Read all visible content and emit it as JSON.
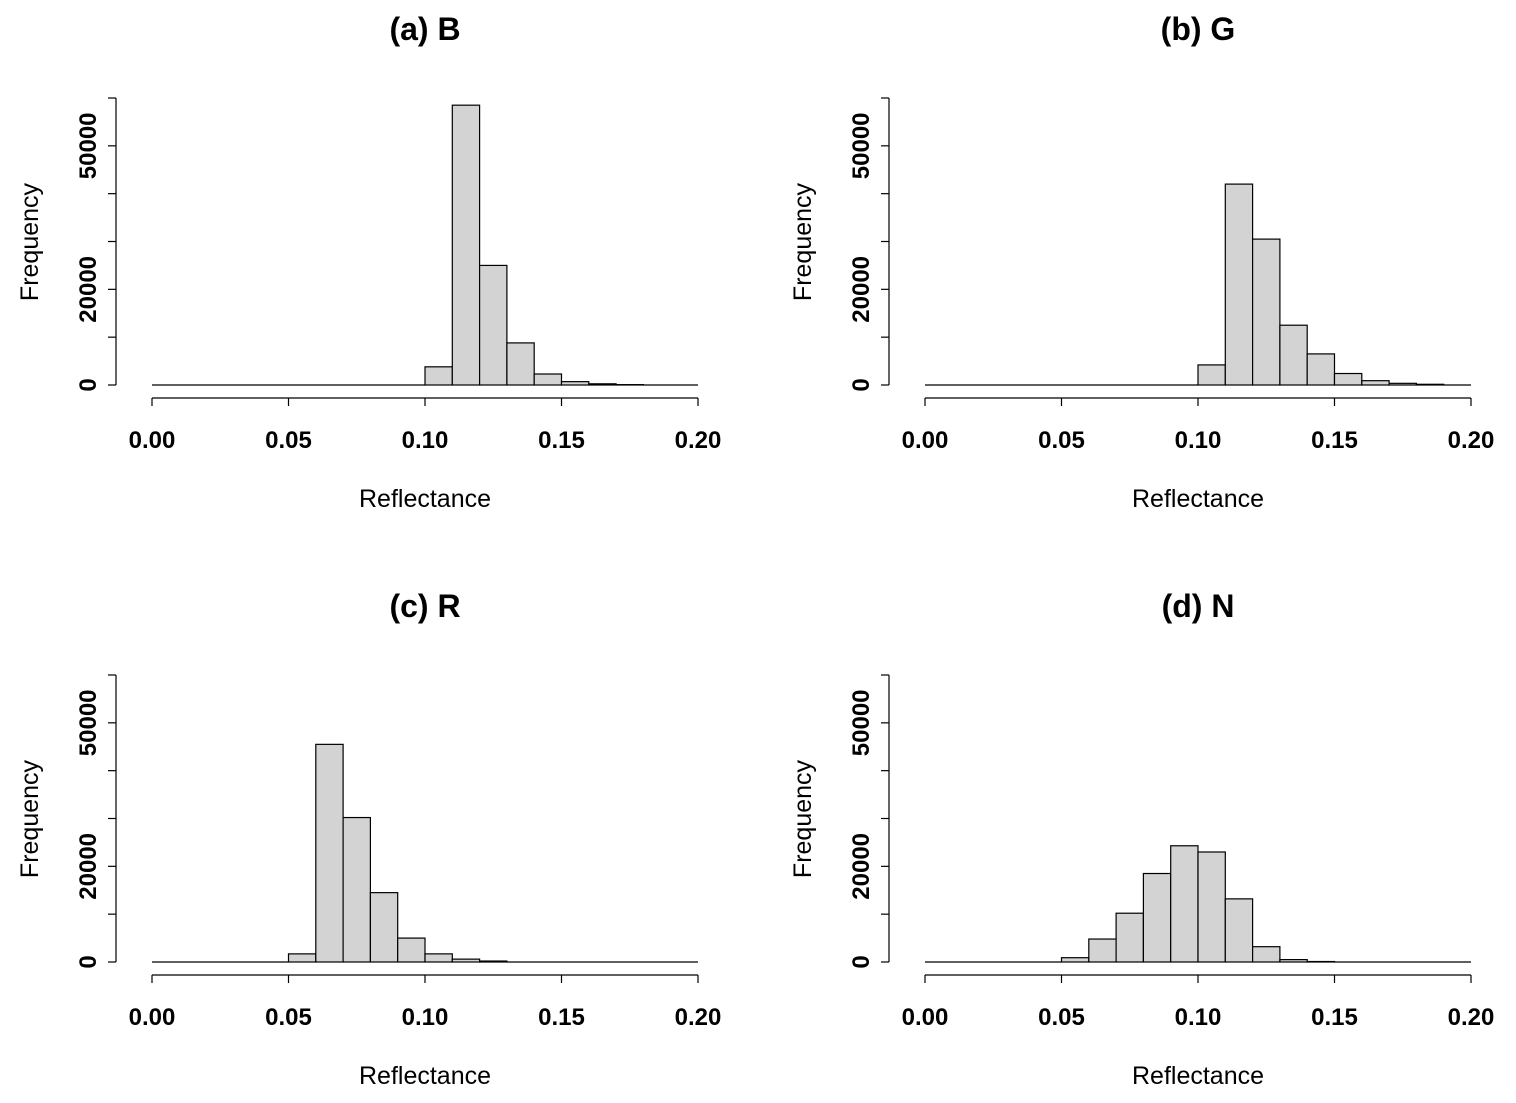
{
  "figure": {
    "bar_fill": "#d3d3d3",
    "bar_stroke": "#000000"
  },
  "chart_data": [
    {
      "type": "bar",
      "title": "(a) B",
      "xlabel": "Reflectance",
      "ylabel": "Frequency",
      "xlim": [
        0,
        0.2
      ],
      "ylim": [
        0,
        60000
      ],
      "x_ticks": [
        "0.00",
        "0.05",
        "0.10",
        "0.15",
        "0.20"
      ],
      "x_tick_values": [
        0,
        0.05,
        0.1,
        0.15,
        0.2
      ],
      "y_ticks": [
        "0",
        "20000",
        "50000"
      ],
      "y_tick_values": [
        0,
        20000,
        50000
      ],
      "y_minor_ticks": [
        10000,
        30000,
        40000,
        60000
      ],
      "bins": [
        {
          "x0": 0.0,
          "x1": 0.1,
          "count": 0
        },
        {
          "x0": 0.1,
          "x1": 0.11,
          "count": 3800
        },
        {
          "x0": 0.11,
          "x1": 0.12,
          "count": 58500
        },
        {
          "x0": 0.12,
          "x1": 0.13,
          "count": 25000
        },
        {
          "x0": 0.13,
          "x1": 0.14,
          "count": 8800
        },
        {
          "x0": 0.14,
          "x1": 0.15,
          "count": 2300
        },
        {
          "x0": 0.15,
          "x1": 0.16,
          "count": 700
        },
        {
          "x0": 0.16,
          "x1": 0.17,
          "count": 250
        },
        {
          "x0": 0.17,
          "x1": 0.18,
          "count": 80
        },
        {
          "x0": 0.18,
          "x1": 0.2,
          "count": 0
        }
      ]
    },
    {
      "type": "bar",
      "title": "(b) G",
      "xlabel": "Reflectance",
      "ylabel": "Frequency",
      "xlim": [
        0,
        0.2
      ],
      "ylim": [
        0,
        60000
      ],
      "x_ticks": [
        "0.00",
        "0.05",
        "0.10",
        "0.15",
        "0.20"
      ],
      "x_tick_values": [
        0,
        0.05,
        0.1,
        0.15,
        0.2
      ],
      "y_ticks": [
        "0",
        "20000",
        "50000"
      ],
      "y_tick_values": [
        0,
        20000,
        50000
      ],
      "y_minor_ticks": [
        10000,
        30000,
        40000,
        60000
      ],
      "bins": [
        {
          "x0": 0.0,
          "x1": 0.1,
          "count": 0
        },
        {
          "x0": 0.1,
          "x1": 0.11,
          "count": 4200
        },
        {
          "x0": 0.11,
          "x1": 0.12,
          "count": 42000
        },
        {
          "x0": 0.12,
          "x1": 0.13,
          "count": 30500
        },
        {
          "x0": 0.13,
          "x1": 0.14,
          "count": 12500
        },
        {
          "x0": 0.14,
          "x1": 0.15,
          "count": 6500
        },
        {
          "x0": 0.15,
          "x1": 0.16,
          "count": 2400
        },
        {
          "x0": 0.16,
          "x1": 0.17,
          "count": 900
        },
        {
          "x0": 0.17,
          "x1": 0.18,
          "count": 350
        },
        {
          "x0": 0.18,
          "x1": 0.19,
          "count": 150
        },
        {
          "x0": 0.19,
          "x1": 0.2,
          "count": 0
        }
      ]
    },
    {
      "type": "bar",
      "title": "(c) R",
      "xlabel": "Reflectance",
      "ylabel": "Frequency",
      "xlim": [
        0,
        0.2
      ],
      "ylim": [
        0,
        60000
      ],
      "x_ticks": [
        "0.00",
        "0.05",
        "0.10",
        "0.15",
        "0.20"
      ],
      "x_tick_values": [
        0,
        0.05,
        0.1,
        0.15,
        0.2
      ],
      "y_ticks": [
        "0",
        "20000",
        "50000"
      ],
      "y_tick_values": [
        0,
        20000,
        50000
      ],
      "y_minor_ticks": [
        10000,
        30000,
        40000,
        60000
      ],
      "bins": [
        {
          "x0": 0.0,
          "x1": 0.05,
          "count": 0
        },
        {
          "x0": 0.05,
          "x1": 0.06,
          "count": 1700
        },
        {
          "x0": 0.06,
          "x1": 0.07,
          "count": 45500
        },
        {
          "x0": 0.07,
          "x1": 0.08,
          "count": 30200
        },
        {
          "x0": 0.08,
          "x1": 0.09,
          "count": 14500
        },
        {
          "x0": 0.09,
          "x1": 0.1,
          "count": 5000
        },
        {
          "x0": 0.1,
          "x1": 0.11,
          "count": 1700
        },
        {
          "x0": 0.11,
          "x1": 0.12,
          "count": 600
        },
        {
          "x0": 0.12,
          "x1": 0.13,
          "count": 200
        },
        {
          "x0": 0.13,
          "x1": 0.2,
          "count": 0
        }
      ]
    },
    {
      "type": "bar",
      "title": "(d) N",
      "xlabel": "Reflectance",
      "ylabel": "Frequency",
      "xlim": [
        0,
        0.2
      ],
      "ylim": [
        0,
        60000
      ],
      "x_ticks": [
        "0.00",
        "0.05",
        "0.10",
        "0.15",
        "0.20"
      ],
      "x_tick_values": [
        0,
        0.05,
        0.1,
        0.15,
        0.2
      ],
      "y_ticks": [
        "0",
        "20000",
        "50000"
      ],
      "y_tick_values": [
        0,
        20000,
        50000
      ],
      "y_minor_ticks": [
        10000,
        30000,
        40000,
        60000
      ],
      "bins": [
        {
          "x0": 0.0,
          "x1": 0.05,
          "count": 0
        },
        {
          "x0": 0.05,
          "x1": 0.06,
          "count": 900
        },
        {
          "x0": 0.06,
          "x1": 0.07,
          "count": 4800
        },
        {
          "x0": 0.07,
          "x1": 0.08,
          "count": 10200
        },
        {
          "x0": 0.08,
          "x1": 0.09,
          "count": 18500
        },
        {
          "x0": 0.09,
          "x1": 0.1,
          "count": 24300
        },
        {
          "x0": 0.1,
          "x1": 0.11,
          "count": 23000
        },
        {
          "x0": 0.11,
          "x1": 0.12,
          "count": 13200
        },
        {
          "x0": 0.12,
          "x1": 0.13,
          "count": 3200
        },
        {
          "x0": 0.13,
          "x1": 0.14,
          "count": 500
        },
        {
          "x0": 0.14,
          "x1": 0.15,
          "count": 100
        },
        {
          "x0": 0.15,
          "x1": 0.2,
          "count": 0
        }
      ]
    }
  ]
}
